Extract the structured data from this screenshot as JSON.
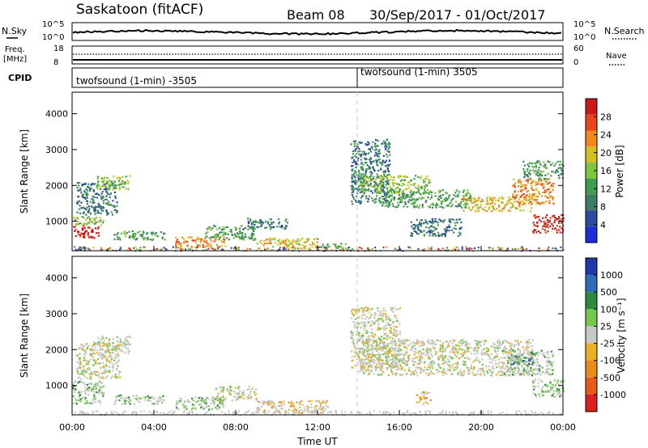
{
  "header": {
    "station": "Saskatoon (fitACF)",
    "beam": "Beam 08",
    "date_range": "30/Sep/2017 - 01/Oct/2017"
  },
  "panels": {
    "nsky_label": "N.Sky",
    "nsky_ticks": [
      "10^5",
      "10^0"
    ],
    "nsearch_label": "N.Search",
    "nsearch_ticks": [
      "10^5",
      "10^0"
    ],
    "freq_label": "Freq.",
    "freq_unit": "[MHz]",
    "freq_ticks": [
      "18",
      "8"
    ],
    "nave_label": "Nave",
    "nave_ticks": [
      "60",
      "0"
    ],
    "cpid_label": "CPID",
    "cpid_first": "twofsound (1-min) -3505",
    "cpid_second": "twofsound (1-min) 3505"
  },
  "colors": {
    "power": [
      "#1a2fd8",
      "#2c4a9e",
      "#3f7c66",
      "#3e9e4e",
      "#7dc642",
      "#d6c020",
      "#f08a1c",
      "#e8461c",
      "#c81818"
    ],
    "velocity": [
      "#1f3aa8",
      "#2c6fb4",
      "#2e8a3c",
      "#74c94a",
      "#c8c8c8",
      "#ecb020",
      "#ec8a1c",
      "#e85a18",
      "#d82020"
    ],
    "gray_scatter": "#c4c4c0"
  },
  "chart_data": [
    {
      "type": "heatmap",
      "name": "power",
      "ylabel": "Slant Range [km]",
      "yticks": [
        "4000",
        "3000",
        "2000",
        "1000"
      ],
      "y_values": [
        4000,
        3000,
        2000,
        1000
      ],
      "ylim": [
        180,
        4600
      ],
      "xlim": [
        0,
        24
      ],
      "colorbar_label": "Power [dB]",
      "colorbar_ticks": [
        "28",
        "24",
        "20",
        "16",
        "12",
        "8",
        "4"
      ],
      "regions": [
        {
          "t": [
            0.0,
            1.3
          ],
          "r": [
            550,
            900
          ],
          "level": 8
        },
        {
          "t": [
            0.0,
            1.5
          ],
          "r": [
            900,
            1150
          ],
          "level": 4
        },
        {
          "t": [
            0.2,
            2.2
          ],
          "r": [
            1200,
            2100
          ],
          "level": 2
        },
        {
          "t": [
            1.2,
            2.8
          ],
          "r": [
            1900,
            2300
          ],
          "level": 4
        },
        {
          "t": [
            2.0,
            4.5
          ],
          "r": [
            500,
            750
          ],
          "level": 3
        },
        {
          "t": [
            5.0,
            7.5
          ],
          "r": [
            300,
            600
          ],
          "level": 6
        },
        {
          "t": [
            6.5,
            9.0
          ],
          "r": [
            500,
            900
          ],
          "level": 3
        },
        {
          "t": [
            8.5,
            10.5
          ],
          "r": [
            800,
            1100
          ],
          "level": 2
        },
        {
          "t": [
            9.0,
            12.0
          ],
          "r": [
            250,
            550
          ],
          "level": 5
        },
        {
          "t": [
            12.0,
            13.5
          ],
          "r": [
            250,
            400
          ],
          "level": 3
        },
        {
          "t": [
            13.6,
            15.5
          ],
          "r": [
            1500,
            3300
          ],
          "level": 2
        },
        {
          "t": [
            14.0,
            17.5
          ],
          "r": [
            1800,
            2300
          ],
          "level": 4
        },
        {
          "t": [
            15.0,
            19.5
          ],
          "r": [
            1400,
            1900
          ],
          "level": 3
        },
        {
          "t": [
            16.5,
            19.0
          ],
          "r": [
            600,
            1100
          ],
          "level": 2
        },
        {
          "t": [
            19.0,
            22.5
          ],
          "r": [
            1300,
            1700
          ],
          "level": 5
        },
        {
          "t": [
            21.5,
            23.5
          ],
          "r": [
            1500,
            2200
          ],
          "level": 6
        },
        {
          "t": [
            22.5,
            24.0
          ],
          "r": [
            700,
            1200
          ],
          "level": 8
        },
        {
          "t": [
            22.0,
            24.0
          ],
          "r": [
            2200,
            2700
          ],
          "level": 3
        }
      ]
    },
    {
      "type": "heatmap",
      "name": "velocity",
      "ylabel": "Slant Range [km]",
      "yticks": [
        "4000",
        "3000",
        "2000",
        "1000"
      ],
      "y_values": [
        4000,
        3000,
        2000,
        1000
      ],
      "ylim": [
        180,
        4600
      ],
      "xlim": [
        0,
        24
      ],
      "xlabel": "Time UT",
      "xticks": [
        "00:00",
        "04:00",
        "08:00",
        "12:00",
        "16:00",
        "20:00",
        "00:00"
      ],
      "x_values": [
        0,
        4,
        8,
        12,
        16,
        20,
        24
      ],
      "colorbar_label": "Velocity [m s⁻¹]",
      "colorbar_ticks": [
        "1000",
        "500",
        "100",
        "25",
        "-25",
        "-100",
        "-500",
        "-1000"
      ],
      "regions": [
        {
          "t": [
            0.0,
            1.5
          ],
          "r": [
            500,
            1150
          ],
          "level": 3
        },
        {
          "t": [
            0.2,
            2.3
          ],
          "r": [
            1200,
            2200
          ],
          "level": 4
        },
        {
          "t": [
            1.0,
            2.8
          ],
          "r": [
            1900,
            2400
          ],
          "level": 4
        },
        {
          "t": [
            2.0,
            4.5
          ],
          "r": [
            500,
            750
          ],
          "level": 3
        },
        {
          "t": [
            5.0,
            7.5
          ],
          "r": [
            350,
            700
          ],
          "level": 3
        },
        {
          "t": [
            7.0,
            9.0
          ],
          "r": [
            600,
            1000
          ],
          "level": 4
        },
        {
          "t": [
            9.0,
            12.5
          ],
          "r": [
            250,
            600
          ],
          "level": 5
        },
        {
          "t": [
            13.6,
            16.0
          ],
          "r": [
            1500,
            3200
          ],
          "level": 4
        },
        {
          "t": [
            14.0,
            22.5
          ],
          "r": [
            1300,
            2300
          ],
          "level": 4
        },
        {
          "t": [
            16.8,
            17.5
          ],
          "r": [
            500,
            850
          ],
          "level": 5
        },
        {
          "t": [
            21.0,
            23.5
          ],
          "r": [
            1300,
            2000
          ],
          "level": 3
        },
        {
          "t": [
            22.5,
            24.0
          ],
          "r": [
            700,
            1200
          ],
          "level": 3
        },
        {
          "t": [
            21.5,
            22.5
          ],
          "r": [
            1600,
            1900
          ],
          "level": 1
        }
      ]
    }
  ]
}
